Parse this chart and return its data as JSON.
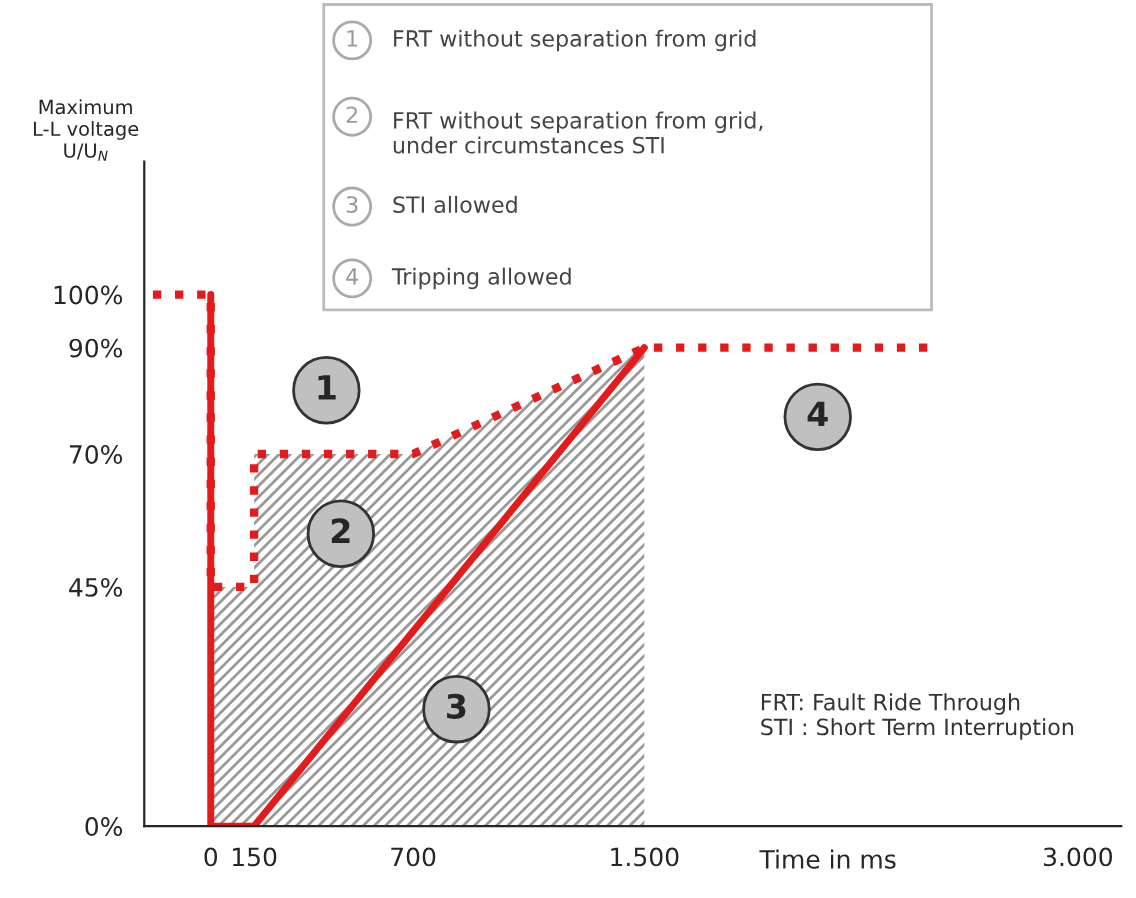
{
  "chart_data": {
    "type": "line",
    "ylabel": "Maximum\nL-L voltage\nU/U$_{N}$",
    "xlabel": "Time in ms",
    "xlim": [
      -230,
      3150
    ],
    "ylim": [
      0,
      125
    ],
    "xticks": [
      0,
      150,
      700,
      {
        "value": 1500,
        "label": "1.500"
      },
      {
        "value": 3000,
        "label": "3.000"
      }
    ],
    "yticks": [
      {
        "value": 0,
        "label": "0%"
      },
      {
        "value": 45,
        "label": "45%"
      },
      {
        "value": 70,
        "label": "70%"
      },
      {
        "value": 90,
        "label": "90%"
      },
      {
        "value": 100,
        "label": "100%"
      }
    ],
    "series": [
      {
        "type": "area",
        "color": "#999999",
        "x": [
          0,
          150,
          150,
          700,
          1500
        ],
        "values": [
          45,
          45,
          70,
          70,
          90
        ]
      },
      {
        "color": "#e31b1b",
        "line_style": "solid",
        "x": [
          0,
          0,
          150,
          1500
        ],
        "values": [
          100,
          0,
          0,
          90
        ]
      },
      {
        "color": "#e31b1b",
        "line_style": "dotted",
        "x": [
          -200,
          0,
          0,
          150,
          150,
          700,
          1500,
          2500
        ],
        "values": [
          100,
          100,
          45,
          45,
          70,
          70,
          90,
          90
        ]
      }
    ],
    "annotations": [
      {
        "text": "1",
        "x": 400,
        "y": 82
      },
      {
        "text": "2",
        "x": 450,
        "y": 55
      },
      {
        "text": "3",
        "x": 850,
        "y": 22
      },
      {
        "text": "4",
        "x": 2100,
        "y": 77
      },
      "FRT without separation from grid",
      "FRT without separation from grid,\nunder circumstances STI",
      "STI allowed",
      "Tripping allowed",
      "FRT: Fault Ride Through\nSTI : Short Term Interruption"
    ],
    "grid": false
  }
}
